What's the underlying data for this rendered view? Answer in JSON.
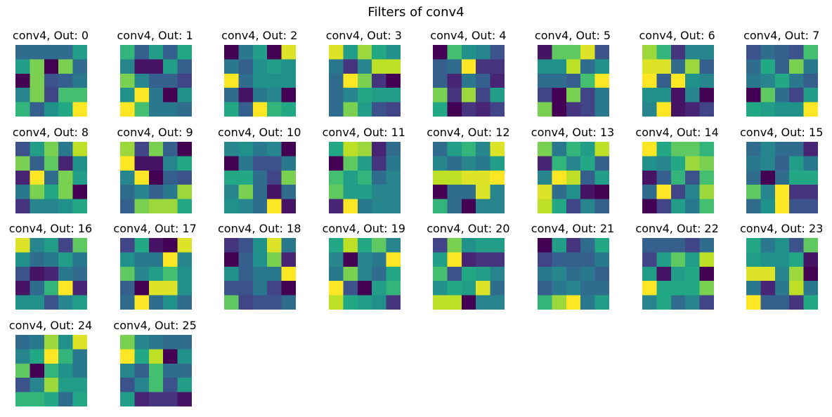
{
  "figure_title": "Filters of conv4",
  "colormap": "viridis",
  "chart_data": [
    {
      "type": "heatmap",
      "title": "conv4, Out: 0",
      "z": [
        [
          0.35,
          0.35,
          0.35,
          0.35,
          0.55
        ],
        [
          0.55,
          0.8,
          0.0,
          0.8,
          0.35
        ],
        [
          0.0,
          0.8,
          0.25,
          0.3,
          0.4
        ],
        [
          0.45,
          0.8,
          0.2,
          0.7,
          0.7
        ],
        [
          0.65,
          0.3,
          0.5,
          0.6,
          1.0
        ]
      ]
    },
    {
      "type": "heatmap",
      "title": "conv4, Out: 1",
      "z": [
        [
          0.65,
          0.3,
          0.55,
          0.3,
          0.6
        ],
        [
          0.45,
          0.05,
          0.05,
          0.55,
          0.3
        ],
        [
          0.8,
          0.45,
          0.3,
          0.3,
          0.2
        ],
        [
          0.5,
          1.0,
          0.4,
          0.0,
          0.5
        ],
        [
          1.0,
          0.7,
          0.4,
          0.4,
          0.35
        ]
      ]
    },
    {
      "type": "heatmap",
      "title": "conv4, Out: 2",
      "z": [
        [
          0.0,
          0.4,
          0.55,
          0.0,
          0.95
        ],
        [
          0.4,
          0.3,
          0.5,
          0.55,
          0.5
        ],
        [
          1.0,
          0.35,
          0.5,
          0.5,
          0.5
        ],
        [
          0.35,
          0.05,
          0.4,
          0.45,
          0.0
        ],
        [
          0.6,
          0.3,
          1.0,
          0.65,
          0.6
        ]
      ]
    },
    {
      "type": "heatmap",
      "title": "conv4, Out: 3",
      "z": [
        [
          0.95,
          0.55,
          0.85,
          0.6,
          0.5
        ],
        [
          0.4,
          0.15,
          0.45,
          0.9,
          0.9
        ],
        [
          0.35,
          1.0,
          0.8,
          0.15,
          0.0
        ],
        [
          0.35,
          0.45,
          0.6,
          0.55,
          0.55
        ],
        [
          0.35,
          0.8,
          0.55,
          0.25,
          0.2
        ]
      ]
    },
    {
      "type": "heatmap",
      "title": "conv4, Out: 4",
      "z": [
        [
          0.0,
          0.7,
          0.5,
          0.45,
          0.25
        ],
        [
          0.3,
          0.35,
          1.0,
          0.15,
          0.15
        ],
        [
          0.3,
          0.1,
          0.4,
          0.3,
          0.1
        ],
        [
          0.8,
          0.15,
          0.85,
          0.2,
          0.55
        ],
        [
          0.6,
          0.0,
          0.15,
          0.1,
          0.2
        ]
      ]
    },
    {
      "type": "heatmap",
      "title": "conv4, Out: 5",
      "z": [
        [
          0.05,
          0.75,
          0.75,
          0.95,
          0.25
        ],
        [
          0.5,
          0.5,
          0.9,
          0.35,
          0.5
        ],
        [
          0.35,
          0.35,
          0.3,
          0.7,
          1.0
        ],
        [
          0.2,
          0.0,
          0.8,
          0.2,
          0.4
        ],
        [
          0.8,
          0.0,
          0.15,
          0.2,
          0.4
        ]
      ]
    },
    {
      "type": "heatmap",
      "title": "conv4, Out: 6",
      "z": [
        [
          0.85,
          0.65,
          0.15,
          0.45,
          0.45
        ],
        [
          0.95,
          0.95,
          0.35,
          0.85,
          0.3
        ],
        [
          1.0,
          0.3,
          1.0,
          0.5,
          0.45
        ],
        [
          0.5,
          0.5,
          0.05,
          0.45,
          0.0
        ],
        [
          0.45,
          1.0,
          0.05,
          0.1,
          0.2
        ]
      ]
    },
    {
      "type": "heatmap",
      "title": "conv4, Out: 7",
      "z": [
        [
          0.25,
          0.35,
          0.3,
          0.25,
          0.7
        ],
        [
          0.35,
          0.6,
          0.3,
          0.8,
          0.4
        ],
        [
          0.4,
          0.45,
          0.6,
          0.4,
          0.3
        ],
        [
          0.0,
          0.75,
          0.35,
          0.2,
          0.55
        ],
        [
          0.6,
          0.55,
          0.5,
          0.5,
          1.0
        ]
      ]
    },
    {
      "type": "heatmap",
      "title": "conv4, Out: 8",
      "z": [
        [
          0.25,
          0.55,
          0.8,
          0.4,
          0.9
        ],
        [
          0.8,
          0.3,
          0.75,
          0.1,
          0.5
        ],
        [
          0.1,
          1.0,
          0.35,
          0.8,
          0.55
        ],
        [
          0.4,
          0.8,
          0.6,
          0.8,
          0.0
        ],
        [
          0.15,
          0.45,
          0.45,
          0.5,
          0.6
        ]
      ]
    },
    {
      "type": "heatmap",
      "title": "conv4, Out: 9",
      "z": [
        [
          0.85,
          0.2,
          0.8,
          0.3,
          0.0
        ],
        [
          1.0,
          0.05,
          0.05,
          0.45,
          0.6
        ],
        [
          0.45,
          1.0,
          0.0,
          0.3,
          0.25
        ],
        [
          0.35,
          0.45,
          0.3,
          0.4,
          0.85
        ],
        [
          0.3,
          0.8,
          0.85,
          0.85,
          0.6
        ]
      ]
    },
    {
      "type": "heatmap",
      "title": "conv4, Out: 10",
      "z": [
        [
          0.45,
          0.5,
          0.4,
          0.45,
          0.0
        ],
        [
          0.0,
          0.4,
          0.25,
          0.25,
          0.4
        ],
        [
          0.6,
          0.6,
          0.35,
          0.2,
          0.8
        ],
        [
          0.45,
          0.8,
          0.35,
          0.05,
          0.35
        ],
        [
          0.5,
          0.45,
          0.35,
          1.0,
          0.05
        ]
      ]
    },
    {
      "type": "heatmap",
      "title": "conv4, Out: 11",
      "z": [
        [
          0.6,
          0.9,
          0.85,
          0.1,
          0.35
        ],
        [
          0.0,
          0.75,
          0.55,
          0.15,
          0.4
        ],
        [
          0.7,
          0.55,
          0.65,
          0.35,
          0.45
        ],
        [
          0.75,
          0.55,
          0.55,
          0.45,
          0.45
        ],
        [
          0.1,
          1.0,
          0.4,
          0.45,
          0.45
        ]
      ]
    },
    {
      "type": "heatmap",
      "title": "conv4, Out: 12",
      "z": [
        [
          0.35,
          0.55,
          0.65,
          0.45,
          0.95
        ],
        [
          0.45,
          0.35,
          0.45,
          0.4,
          0.55
        ],
        [
          0.9,
          0.9,
          0.95,
          0.95,
          1.0
        ],
        [
          0.0,
          0.35,
          0.35,
          0.95,
          0.45
        ],
        [
          0.65,
          0.35,
          0.0,
          0.45,
          0.45
        ]
      ]
    },
    {
      "type": "heatmap",
      "title": "conv4, Out: 13",
      "z": [
        [
          0.8,
          0.4,
          0.65,
          0.55,
          0.9
        ],
        [
          0.1,
          0.65,
          0.45,
          0.6,
          0.3
        ],
        [
          0.45,
          1.0,
          0.9,
          0.3,
          0.55
        ],
        [
          0.95,
          0.35,
          0.5,
          0.05,
          0.0
        ],
        [
          0.9,
          0.6,
          0.2,
          0.45,
          0.3
        ]
      ]
    },
    {
      "type": "heatmap",
      "title": "conv4, Out: 14",
      "z": [
        [
          1.0,
          0.6,
          0.75,
          0.75,
          0.65
        ],
        [
          0.5,
          0.45,
          0.6,
          0.85,
          0.8
        ],
        [
          0.05,
          0.3,
          0.65,
          0.25,
          0.7
        ],
        [
          0.35,
          1.0,
          0.2,
          0.45,
          0.85
        ],
        [
          0.0,
          0.2,
          0.55,
          0.4,
          0.7
        ]
      ]
    },
    {
      "type": "heatmap",
      "title": "conv4, Out: 15",
      "z": [
        [
          0.35,
          0.45,
          0.35,
          0.35,
          0.1
        ],
        [
          0.4,
          0.45,
          0.3,
          0.55,
          0.4
        ],
        [
          0.35,
          0.0,
          0.35,
          0.6,
          0.6
        ],
        [
          0.75,
          0.45,
          1.0,
          0.15,
          0.15
        ],
        [
          0.35,
          0.5,
          1.0,
          0.25,
          0.25
        ]
      ]
    },
    {
      "type": "heatmap",
      "title": "conv4, Out: 16",
      "z": [
        [
          0.95,
          0.45,
          0.55,
          0.2,
          0.75
        ],
        [
          0.5,
          0.35,
          0.4,
          0.55,
          0.4
        ],
        [
          0.25,
          0.05,
          0.1,
          0.4,
          0.35
        ],
        [
          0.05,
          0.35,
          0.65,
          1.0,
          0.1
        ],
        [
          0.5,
          0.5,
          0.25,
          0.45,
          0.55
        ]
      ]
    },
    {
      "type": "heatmap",
      "title": "conv4, Out: 17",
      "z": [
        [
          0.2,
          0.6,
          0.05,
          0.0,
          0.95
        ],
        [
          0.5,
          0.4,
          0.4,
          1.0,
          0.45
        ],
        [
          0.75,
          0.45,
          0.55,
          0.7,
          0.5
        ],
        [
          0.3,
          0.0,
          0.95,
          0.95,
          0.5
        ],
        [
          0.35,
          1.0,
          0.35,
          0.5,
          0.35
        ]
      ]
    },
    {
      "type": "heatmap",
      "title": "conv4, Out: 18",
      "z": [
        [
          0.15,
          0.25,
          0.5,
          0.95,
          0.4
        ],
        [
          0.0,
          0.3,
          0.5,
          0.8,
          0.1
        ],
        [
          0.5,
          0.3,
          0.4,
          0.4,
          1.0
        ],
        [
          0.25,
          0.25,
          0.4,
          0.2,
          0.0
        ],
        [
          0.75,
          0.2,
          0.25,
          0.25,
          0.35
        ]
      ]
    },
    {
      "type": "heatmap",
      "title": "conv4, Out: 19",
      "z": [
        [
          0.6,
          0.9,
          0.6,
          0.75,
          0.45
        ],
        [
          0.45,
          0.0,
          0.45,
          0.4,
          1.0
        ],
        [
          0.4,
          0.8,
          0.45,
          0.35,
          0.6
        ],
        [
          1.0,
          0.25,
          0.0,
          0.55,
          0.65
        ],
        [
          0.9,
          0.6,
          0.55,
          0.5,
          0.15
        ]
      ]
    },
    {
      "type": "heatmap",
      "title": "conv4, Out: 20",
      "z": [
        [
          0.2,
          0.8,
          0.5,
          0.55,
          0.55
        ],
        [
          0.55,
          1.0,
          0.1,
          0.15,
          0.15
        ],
        [
          0.7,
          0.25,
          0.6,
          0.55,
          0.45
        ],
        [
          0.5,
          0.6,
          0.55,
          0.95,
          0.35
        ],
        [
          0.9,
          0.9,
          0.0,
          0.45,
          0.45
        ]
      ]
    },
    {
      "type": "heatmap",
      "title": "conv4, Out: 21",
      "z": [
        [
          0.0,
          0.55,
          0.15,
          0.35,
          0.6
        ],
        [
          0.2,
          0.3,
          0.3,
          0.3,
          0.4
        ],
        [
          0.4,
          0.45,
          0.35,
          0.4,
          0.3
        ],
        [
          0.3,
          0.4,
          0.45,
          0.35,
          0.35
        ],
        [
          0.65,
          0.85,
          1.0,
          0.4,
          0.55
        ]
      ]
    },
    {
      "type": "heatmap",
      "title": "conv4, Out: 22",
      "z": [
        [
          0.3,
          0.3,
          0.3,
          0.2,
          0.35
        ],
        [
          0.2,
          0.55,
          0.75,
          0.55,
          0.9
        ],
        [
          0.55,
          0.05,
          0.55,
          0.6,
          0.0
        ],
        [
          1.0,
          0.6,
          0.6,
          0.6,
          0.8
        ],
        [
          0.45,
          0.6,
          0.35,
          0.45,
          0.2
        ]
      ]
    },
    {
      "type": "heatmap",
      "title": "conv4, Out: 23",
      "z": [
        [
          0.6,
          0.4,
          0.5,
          0.25,
          0.75
        ],
        [
          0.55,
          0.5,
          0.5,
          0.6,
          0.05
        ],
        [
          0.95,
          0.95,
          0.45,
          0.85,
          0.0
        ],
        [
          0.4,
          0.1,
          0.4,
          0.9,
          0.4
        ],
        [
          1.0,
          0.3,
          0.3,
          0.15,
          0.6
        ]
      ]
    },
    {
      "type": "heatmap",
      "title": "conv4, Out: 24",
      "z": [
        [
          0.35,
          0.4,
          0.85,
          0.5,
          0.95
        ],
        [
          0.45,
          0.6,
          1.0,
          0.65,
          0.4
        ],
        [
          0.75,
          0.0,
          0.65,
          0.5,
          0.4
        ],
        [
          0.25,
          0.45,
          0.85,
          0.55,
          0.55
        ],
        [
          0.65,
          0.65,
          0.6,
          0.35,
          0.6
        ]
      ]
    },
    {
      "type": "heatmap",
      "title": "conv4, Out: 25",
      "z": [
        [
          0.8,
          0.45,
          0.4,
          0.35,
          0.35
        ],
        [
          1.0,
          0.6,
          0.9,
          0.0,
          0.5
        ],
        [
          0.45,
          0.3,
          0.7,
          0.35,
          0.35
        ],
        [
          0.25,
          0.45,
          0.7,
          0.25,
          0.55
        ],
        [
          0.55,
          0.1,
          0.15,
          0.15,
          0.05
        ]
      ]
    }
  ]
}
